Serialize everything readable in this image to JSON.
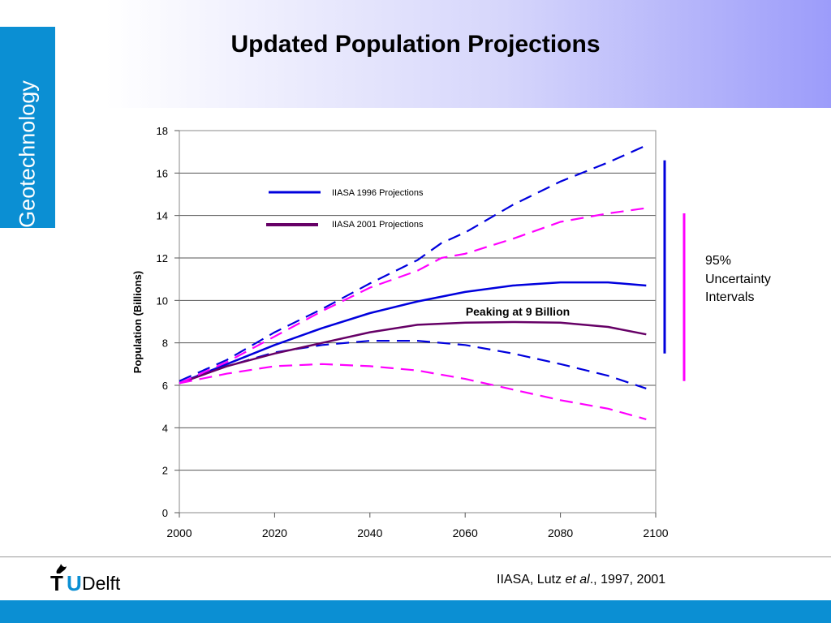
{
  "slide": {
    "title": "Updated Population Projections",
    "side_tab": "Geotechnology",
    "logo_t": "T",
    "logo_u": "U",
    "logo_delft": "Delft",
    "citation_pre": "IIASA, Lutz ",
    "citation_italic": "et al",
    "citation_post": "., 1997, 2001",
    "colors": {
      "brand_blue": "#0b8fd3",
      "header_gradient_end": "#9c9cfa"
    }
  },
  "chart_data": {
    "type": "line",
    "title": "",
    "xlabel": "",
    "ylabel": "Population (Billions)",
    "xlim": [
      2000,
      2100
    ],
    "ylim": [
      0,
      18
    ],
    "x_ticks": [
      "2000",
      "2020",
      "2040",
      "2060",
      "2080",
      "2100"
    ],
    "y_ticks": [
      "0",
      "2",
      "4",
      "6",
      "8",
      "10",
      "12",
      "14",
      "16",
      "18"
    ],
    "grid": "horizontal",
    "legend_position": "top-left",
    "legend": [
      {
        "label": "IIASA 1996 Projections",
        "color": "#0000dd"
      },
      {
        "label": "IIASA 2001 Projections",
        "color": "#660066"
      }
    ],
    "series": [
      {
        "legend_ref": 0,
        "style": "solid",
        "color": "#0000dd",
        "x": [
          2000,
          2010,
          2020,
          2030,
          2040,
          2050,
          2060,
          2070,
          2080,
          2090,
          2098
        ],
        "y": [
          6.1,
          7.0,
          7.9,
          8.7,
          9.4,
          9.95,
          10.4,
          10.7,
          10.85,
          10.85,
          10.7
        ]
      },
      {
        "legend_ref": 0,
        "style": "dashed",
        "color": "#0000dd",
        "x": [
          2000,
          2010,
          2020,
          2030,
          2040,
          2050,
          2055,
          2060,
          2070,
          2080,
          2090,
          2098
        ],
        "y": [
          6.2,
          7.2,
          8.5,
          9.6,
          10.8,
          11.9,
          12.7,
          13.2,
          14.5,
          15.6,
          16.5,
          17.3
        ]
      },
      {
        "legend_ref": 0,
        "style": "dashed",
        "color": "#0000dd",
        "x": [
          2000,
          2010,
          2020,
          2030,
          2040,
          2050,
          2060,
          2070,
          2080,
          2090,
          2098
        ],
        "y": [
          6.1,
          6.9,
          7.55,
          7.9,
          8.1,
          8.1,
          7.9,
          7.5,
          7.0,
          6.45,
          5.85
        ]
      },
      {
        "legend_ref": 1,
        "style": "solid",
        "color": "#660066",
        "x": [
          2000,
          2010,
          2020,
          2030,
          2040,
          2050,
          2060,
          2070,
          2080,
          2090,
          2098
        ],
        "y": [
          6.1,
          6.9,
          7.5,
          8.0,
          8.5,
          8.85,
          8.95,
          8.98,
          8.95,
          8.75,
          8.4
        ]
      },
      {
        "legend_ref": 1,
        "style": "dashed",
        "color": "#ff00ff",
        "x": [
          2000,
          2010,
          2020,
          2030,
          2040,
          2050,
          2055,
          2060,
          2070,
          2080,
          2090,
          2098
        ],
        "y": [
          6.1,
          7.1,
          8.3,
          9.5,
          10.6,
          11.4,
          12.0,
          12.2,
          12.9,
          13.7,
          14.1,
          14.35
        ]
      },
      {
        "legend_ref": 1,
        "style": "dashed",
        "color": "#ff00ff",
        "x": [
          2000,
          2010,
          2020,
          2030,
          2040,
          2050,
          2060,
          2070,
          2080,
          2090,
          2098
        ],
        "y": [
          6.1,
          6.55,
          6.9,
          7.0,
          6.9,
          6.7,
          6.3,
          5.8,
          5.3,
          4.9,
          4.4
        ]
      }
    ],
    "annotations": {
      "peak_label": "Peaking at 9 Billion",
      "uncertainty_label_line1": "95%",
      "uncertainty_label_line2": "Uncertainty",
      "uncertainty_label_line3": "Intervals"
    },
    "uncertainty_intervals": [
      {
        "year": 2098,
        "low": 7.5,
        "high": 16.6,
        "color": "#0000dd"
      },
      {
        "year": 2102,
        "low": 6.2,
        "high": 14.1,
        "color": "#ff00ff"
      }
    ]
  }
}
